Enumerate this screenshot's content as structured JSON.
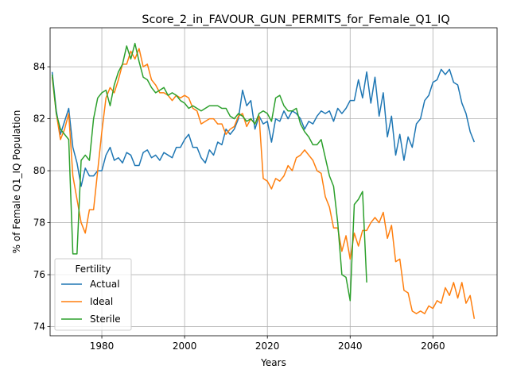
{
  "chart_data": {
    "type": "line",
    "title": "Score_2_in_FAVOUR_GUN_PERMITS_for_Female_Q1_IQ",
    "xlabel": "Years",
    "ylabel": "% of Female Q1_IQ Population",
    "xlim": [
      1967.5,
      2075.5
    ],
    "ylim": [
      73.65,
      85.5
    ],
    "xticks": [
      1980,
      2000,
      2020,
      2040,
      2060
    ],
    "yticks": [
      74,
      76,
      78,
      80,
      82,
      84
    ],
    "grid": true,
    "legend": {
      "title": "Fertility",
      "placement": "lower-left"
    },
    "series": [
      {
        "name": "Actual",
        "color": "#1f77b4",
        "x": [
          1968,
          1969,
          1970,
          1971,
          1972,
          1973,
          1974,
          1975,
          1976,
          1977,
          1978,
          1979,
          1980,
          1981,
          1982,
          1983,
          1984,
          1985,
          1986,
          1987,
          1988,
          1989,
          1990,
          1991,
          1992,
          1993,
          1994,
          1995,
          1996,
          1997,
          1998,
          1999,
          2000,
          2001,
          2002,
          2003,
          2004,
          2005,
          2006,
          2007,
          2008,
          2009,
          2010,
          2011,
          2012,
          2013,
          2014,
          2015,
          2016,
          2017,
          2018,
          2019,
          2020,
          2021,
          2022,
          2023,
          2024,
          2025,
          2026,
          2027,
          2028,
          2029,
          2030,
          2031,
          2032,
          2033,
          2034,
          2035,
          2036,
          2037,
          2038,
          2039,
          2040,
          2041,
          2042,
          2043,
          2044,
          2045,
          2046,
          2047,
          2048,
          2049,
          2050,
          2051,
          2052,
          2053,
          2054,
          2055,
          2056,
          2057,
          2058,
          2059,
          2060,
          2061,
          2062,
          2063,
          2064,
          2065,
          2066,
          2067,
          2068,
          2069,
          2070
        ],
        "y": [
          83.8,
          82.3,
          81.4,
          81.9,
          82.4,
          80.9,
          80.3,
          79.4,
          80.1,
          79.8,
          79.8,
          80.0,
          80.0,
          80.6,
          80.9,
          80.4,
          80.5,
          80.3,
          80.7,
          80.6,
          80.2,
          80.2,
          80.7,
          80.8,
          80.5,
          80.6,
          80.4,
          80.7,
          80.6,
          80.5,
          80.9,
          80.9,
          81.2,
          81.4,
          80.9,
          80.9,
          80.5,
          80.3,
          80.8,
          80.6,
          81.1,
          81.0,
          81.6,
          81.4,
          81.6,
          82.0,
          83.1,
          82.5,
          82.7,
          81.6,
          82.1,
          81.8,
          81.9,
          81.1,
          82.0,
          81.9,
          82.3,
          82.0,
          82.3,
          82.2,
          82.0,
          81.6,
          81.9,
          81.8,
          82.1,
          82.3,
          82.2,
          82.3,
          81.9,
          82.4,
          82.2,
          82.4,
          82.7,
          82.7,
          83.5,
          82.8,
          83.8,
          82.6,
          83.6,
          82.1,
          83.0,
          81.3,
          82.1,
          80.6,
          81.4,
          80.4,
          81.3,
          80.9,
          81.8,
          82.0,
          82.7,
          82.9,
          83.4,
          83.5,
          83.9,
          83.7,
          83.9,
          83.4,
          83.3,
          82.6,
          82.2,
          81.5,
          81.1
        ]
      },
      {
        "name": "Ideal",
        "color": "#ff7f0e",
        "x": [
          1968,
          1969,
          1970,
          1971,
          1972,
          1973,
          1974,
          1975,
          1976,
          1977,
          1978,
          1979,
          1980,
          1981,
          1982,
          1983,
          1984,
          1985,
          1986,
          1987,
          1988,
          1989,
          1990,
          1991,
          1992,
          1993,
          1994,
          1995,
          1996,
          1997,
          1998,
          1999,
          2000,
          2001,
          2002,
          2003,
          2004,
          2005,
          2006,
          2007,
          2008,
          2009,
          2010,
          2011,
          2012,
          2013,
          2014,
          2015,
          2016,
          2017,
          2018,
          2019,
          2020,
          2021,
          2022,
          2023,
          2024,
          2025,
          2026,
          2027,
          2028,
          2029,
          2030,
          2031,
          2032,
          2033,
          2034,
          2035,
          2036,
          2037,
          2038,
          2039,
          2040,
          2041,
          2042,
          2043,
          2044,
          2045,
          2046,
          2047,
          2048,
          2049,
          2050,
          2051,
          2052,
          2053,
          2054,
          2055,
          2056,
          2057,
          2058,
          2059,
          2060,
          2061,
          2062,
          2063,
          2064,
          2065,
          2066,
          2067,
          2068,
          2069,
          2070
        ],
        "y": [
          83.6,
          82.2,
          81.2,
          81.6,
          82.2,
          79.8,
          78.9,
          78.0,
          77.6,
          78.5,
          78.5,
          80.0,
          81.5,
          82.8,
          83.2,
          83.0,
          83.5,
          84.1,
          84.1,
          84.6,
          84.3,
          84.7,
          84.0,
          84.1,
          83.5,
          83.3,
          83.0,
          83.0,
          82.9,
          82.7,
          82.9,
          82.8,
          82.9,
          82.8,
          82.4,
          82.3,
          81.8,
          81.9,
          82.0,
          82.0,
          81.8,
          81.8,
          81.4,
          81.6,
          81.7,
          82.1,
          82.2,
          81.7,
          82.0,
          81.8,
          82.1,
          79.7,
          79.6,
          79.3,
          79.7,
          79.6,
          79.8,
          80.2,
          80.0,
          80.5,
          80.6,
          80.8,
          80.6,
          80.4,
          80.0,
          79.9,
          79.0,
          78.6,
          77.8,
          77.8,
          76.9,
          77.5,
          76.6,
          77.6,
          77.1,
          77.7,
          77.7,
          78.0,
          78.2,
          78.0,
          78.4,
          77.4,
          77.9,
          76.5,
          76.6,
          75.4,
          75.3,
          74.6,
          74.5,
          74.6,
          74.5,
          74.8,
          74.7,
          75.0,
          74.9,
          75.5,
          75.2,
          75.7,
          75.1,
          75.7,
          74.9,
          75.2,
          74.3
        ]
      },
      {
        "name": "Sterile",
        "color": "#2ca02c",
        "x": [
          1968,
          1969,
          1970,
          1971,
          1972,
          1973,
          1974,
          1975,
          1976,
          1977,
          1978,
          1979,
          1980,
          1981,
          1982,
          1983,
          1984,
          1985,
          1986,
          1987,
          1988,
          1989,
          1990,
          1991,
          1992,
          1993,
          1994,
          1995,
          1996,
          1997,
          1998,
          1999,
          2000,
          2001,
          2002,
          2003,
          2004,
          2005,
          2006,
          2007,
          2008,
          2009,
          2010,
          2011,
          2012,
          2013,
          2014,
          2015,
          2016,
          2017,
          2018,
          2019,
          2020,
          2021,
          2022,
          2023,
          2024,
          2025,
          2026,
          2027,
          2028,
          2029,
          2030,
          2031,
          2032,
          2033,
          2034,
          2035,
          2036,
          2037,
          2038,
          2039,
          2040,
          2041,
          2042,
          2043,
          2044
        ],
        "y": [
          83.7,
          82.2,
          81.6,
          81.4,
          81.2,
          76.8,
          76.8,
          80.4,
          80.6,
          80.4,
          82.0,
          82.8,
          83.0,
          83.1,
          82.5,
          83.3,
          83.8,
          84.1,
          84.8,
          84.3,
          84.9,
          84.2,
          83.6,
          83.5,
          83.2,
          83.0,
          83.1,
          83.2,
          82.9,
          83.0,
          82.9,
          82.7,
          82.6,
          82.4,
          82.5,
          82.4,
          82.3,
          82.4,
          82.5,
          82.5,
          82.5,
          82.4,
          82.4,
          82.1,
          82.0,
          82.2,
          82.1,
          81.9,
          82.0,
          81.8,
          82.2,
          82.3,
          82.2,
          81.9,
          82.8,
          82.9,
          82.5,
          82.3,
          82.3,
          82.4,
          81.8,
          81.5,
          81.3,
          81.0,
          81.0,
          81.2,
          80.5,
          79.8,
          79.4,
          78.0,
          76.0,
          75.9,
          75.0,
          78.7,
          78.9,
          79.2,
          75.7
        ]
      }
    ]
  }
}
